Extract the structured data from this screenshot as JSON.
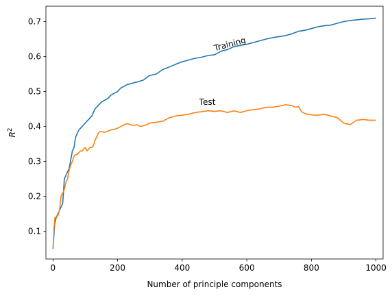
{
  "chart_data": {
    "type": "line",
    "xlabel": "Number of principle components",
    "ylabel": "R",
    "ylabel_superscript": "2",
    "xlim": [
      -22,
      1022
    ],
    "ylim": [
      0.021,
      0.744
    ],
    "xticks": [
      0,
      200,
      400,
      600,
      800,
      1000
    ],
    "yticks": [
      0.1,
      0.2,
      0.3,
      0.4,
      0.5,
      0.6,
      0.7
    ],
    "grid": false,
    "legend": "none",
    "annotations": [
      {
        "text": "Training",
        "x": 550,
        "y": 0.628,
        "rotation": -15
      },
      {
        "text": "Test",
        "x": 478,
        "y": 0.462,
        "rotation": 0
      }
    ],
    "series": [
      {
        "color": "#1f77b4",
        "x": [
          0,
          5,
          10,
          20,
          30,
          35,
          40,
          50,
          60,
          65,
          70,
          75,
          80,
          90,
          100,
          110,
          120,
          130,
          140,
          150,
          160,
          170,
          180,
          190,
          200,
          210,
          220,
          230,
          240,
          250,
          260,
          270,
          280,
          290,
          300,
          320,
          340,
          360,
          380,
          400,
          420,
          440,
          460,
          480,
          500,
          520,
          540,
          560,
          580,
          600,
          620,
          640,
          660,
          680,
          700,
          720,
          740,
          760,
          780,
          800,
          820,
          840,
          860,
          880,
          900,
          920,
          940,
          960,
          980,
          1000
        ],
        "values": [
          0.05,
          0.12,
          0.14,
          0.16,
          0.18,
          0.25,
          0.26,
          0.28,
          0.33,
          0.34,
          0.37,
          0.38,
          0.39,
          0.4,
          0.41,
          0.42,
          0.43,
          0.45,
          0.46,
          0.47,
          0.475,
          0.48,
          0.49,
          0.495,
          0.5,
          0.51,
          0.515,
          0.52,
          0.522,
          0.525,
          0.527,
          0.53,
          0.533,
          0.54,
          0.546,
          0.55,
          0.563,
          0.57,
          0.578,
          0.585,
          0.59,
          0.595,
          0.598,
          0.603,
          0.605,
          0.615,
          0.62,
          0.628,
          0.632,
          0.635,
          0.64,
          0.645,
          0.65,
          0.654,
          0.657,
          0.66,
          0.665,
          0.672,
          0.675,
          0.68,
          0.685,
          0.688,
          0.69,
          0.695,
          0.7,
          0.703,
          0.705,
          0.707,
          0.708,
          0.71
        ]
      },
      {
        "color": "#ff7f0e",
        "x": [
          0,
          3,
          6,
          10,
          15,
          20,
          25,
          30,
          35,
          40,
          45,
          50,
          55,
          60,
          65,
          70,
          75,
          80,
          85,
          90,
          95,
          100,
          105,
          110,
          115,
          120,
          125,
          130,
          135,
          140,
          145,
          150,
          160,
          170,
          180,
          190,
          200,
          210,
          220,
          230,
          240,
          250,
          260,
          270,
          280,
          290,
          300,
          320,
          340,
          360,
          380,
          400,
          420,
          440,
          460,
          480,
          500,
          520,
          540,
          560,
          580,
          600,
          620,
          640,
          660,
          680,
          700,
          720,
          740,
          750,
          760,
          770,
          780,
          790,
          800,
          820,
          840,
          860,
          880,
          900,
          920,
          940,
          960,
          980,
          1000
        ],
        "values": [
          0.05,
          0.11,
          0.14,
          0.14,
          0.145,
          0.16,
          0.2,
          0.21,
          0.22,
          0.24,
          0.25,
          0.275,
          0.29,
          0.3,
          0.315,
          0.32,
          0.32,
          0.325,
          0.33,
          0.33,
          0.335,
          0.34,
          0.33,
          0.335,
          0.34,
          0.34,
          0.345,
          0.36,
          0.37,
          0.38,
          0.385,
          0.385,
          0.383,
          0.387,
          0.39,
          0.392,
          0.395,
          0.4,
          0.405,
          0.408,
          0.405,
          0.403,
          0.405,
          0.4,
          0.402,
          0.405,
          0.41,
          0.412,
          0.415,
          0.425,
          0.43,
          0.432,
          0.435,
          0.44,
          0.442,
          0.445,
          0.443,
          0.445,
          0.44,
          0.445,
          0.44,
          0.445,
          0.448,
          0.45,
          0.455,
          0.455,
          0.458,
          0.462,
          0.46,
          0.455,
          0.457,
          0.442,
          0.437,
          0.435,
          0.433,
          0.432,
          0.435,
          0.43,
          0.425,
          0.41,
          0.405,
          0.418,
          0.42,
          0.418,
          0.418
        ]
      }
    ]
  }
}
